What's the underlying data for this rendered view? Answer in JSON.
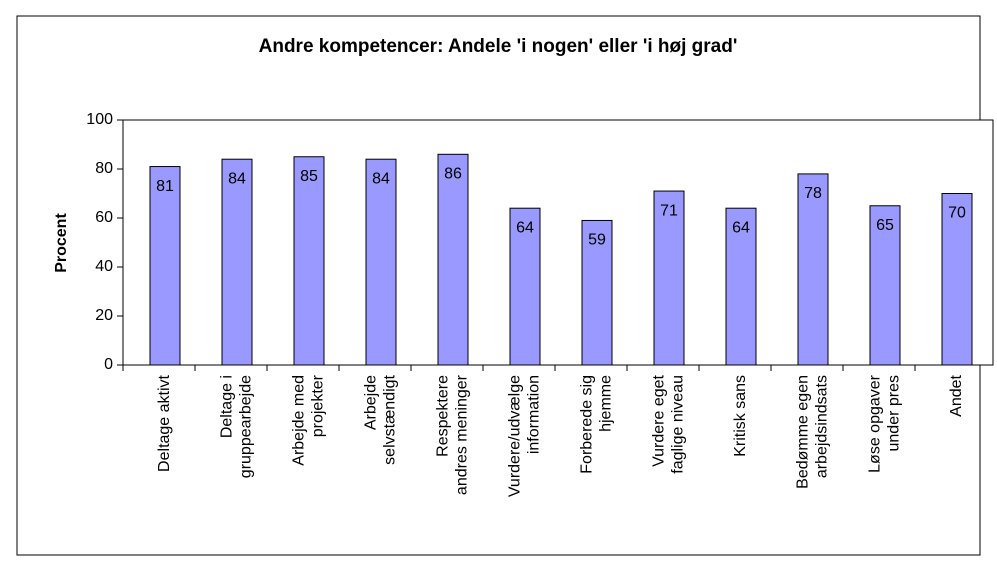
{
  "chart_data": {
    "type": "bar",
    "title": "Andre kompetencer: Andele 'i nogen' eller 'i høj grad'",
    "y_label": "Procent",
    "categories": [
      "Deltage aktivt",
      "Deltage i\ngruppearbejde",
      "Arbejde med\nprojekter",
      "Arbejde\nselvstændigt",
      "Respektere\nandres meninger",
      "Vurdere/udvælge\ninformation",
      "Forberede sig\nhjemme",
      "Vurdere eget\nfaglige niveau",
      "Kritisk sans",
      "Bedømme egen\narbejdsindsats",
      "Løse opgaver\nunder pres",
      "Andet"
    ],
    "values": [
      81,
      84,
      85,
      84,
      86,
      64,
      59,
      71,
      64,
      78,
      65,
      70
    ],
    "color": "#9999ff",
    "ylim": [
      0,
      100
    ],
    "yticks": [
      0,
      20,
      40,
      60,
      80,
      100
    ],
    "grid": false
  }
}
